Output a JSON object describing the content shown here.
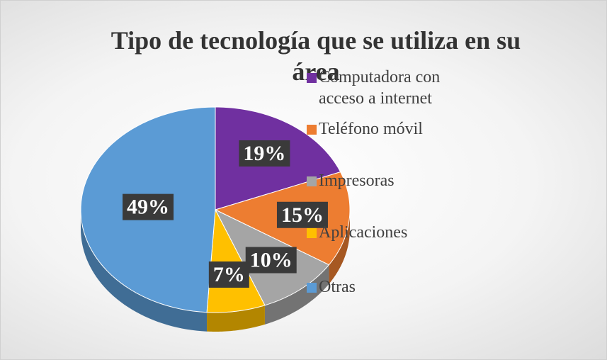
{
  "chart_data": {
    "type": "pie",
    "title": "Tipo de tecnología que se utiliza en su área",
    "categories": [
      "Computadora con acceso a internet",
      "Teléfono móvil",
      "Impresoras",
      "Aplicaciones",
      "Otras"
    ],
    "values": [
      19,
      15,
      10,
      7,
      49
    ],
    "value_labels": [
      "19%",
      "15%",
      "10%",
      "7%",
      "49%"
    ],
    "colors": [
      "#7030a0",
      "#ed7d31",
      "#a5a5a5",
      "#ffc000",
      "#5b9bd5"
    ],
    "legend": "right"
  }
}
